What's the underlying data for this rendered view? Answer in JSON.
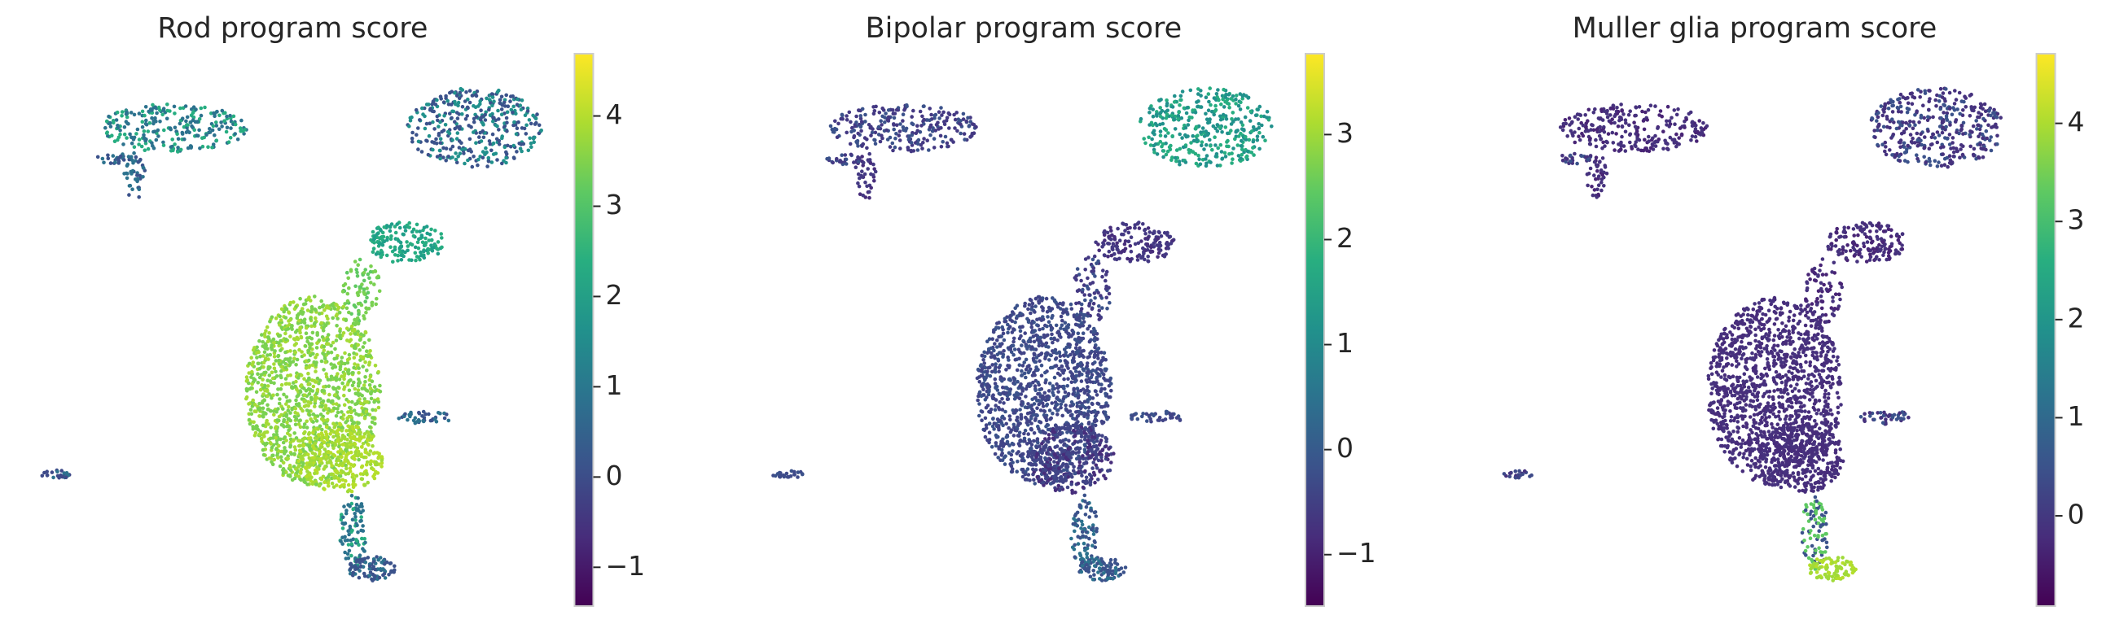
{
  "chart_data": [
    {
      "type": "scatter",
      "title": "Rod program score",
      "colormap": "viridis",
      "clim": [
        -1.43,
        4.69
      ],
      "cticks": [
        {
          "value": -1,
          "label": "−1"
        },
        0,
        1,
        2,
        3,
        4
      ]
    },
    {
      "type": "scatter",
      "title": "Bipolar program score",
      "colormap": "viridis",
      "clim": [
        -1.49,
        3.77
      ],
      "cticks": [
        {
          "value": -1,
          "label": "−1"
        },
        0,
        1,
        2,
        3
      ]
    },
    {
      "type": "scatter",
      "title": "Muller glia program score",
      "colormap": "viridis",
      "clim": [
        -0.92,
        4.71
      ],
      "cticks": [
        0,
        1,
        2,
        3,
        4
      ]
    }
  ]
}
